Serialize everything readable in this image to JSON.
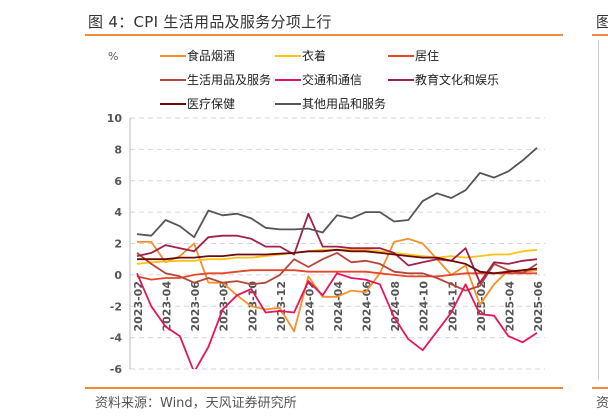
{
  "header": {
    "title": "图 4：CPI 生活用品及服务分项上行",
    "next_panel_title": "图"
  },
  "footer": {
    "source": "资料来源：Wind，天风证券研究所",
    "next_panel_source": "资"
  },
  "chart_data": {
    "type": "line",
    "title": "图 4：CPI 生活用品及服务分项上行",
    "ylabel": "%",
    "xlabel": "",
    "ylim": [
      -6,
      10
    ],
    "yticks": [
      10,
      8,
      6,
      4,
      2,
      0,
      -2,
      -4,
      -6
    ],
    "grid": "horizontal dashed",
    "legend": "top",
    "x": [
      "2023-02",
      "2023-03",
      "2023-04",
      "2023-05",
      "2023-06",
      "2023-07",
      "2023-08",
      "2023-09",
      "2023-10",
      "2023-11",
      "2023-12",
      "2024-01",
      "2024-02",
      "2024-03",
      "2024-04",
      "2024-05",
      "2024-06",
      "2024-07",
      "2024-08",
      "2024-09",
      "2024-10",
      "2024-11",
      "2024-12",
      "2025-01",
      "2025-02",
      "2025-03",
      "2025-04",
      "2025-05",
      "2025-06"
    ],
    "xtick_labels": [
      "2023-02",
      "2023-04",
      "2023-06",
      "2023-08",
      "2023-10",
      "2023-12",
      "2024-02",
      "2024-04",
      "2024-06",
      "2024-08",
      "2024-10",
      "2024-12",
      "2025-02",
      "2025-04",
      "2025-06"
    ],
    "series": [
      {
        "name": "食品烟酒",
        "color": "#F7902A",
        "values": [
          2.1,
          2.1,
          0.8,
          1.2,
          2.0,
          -0.5,
          -0.5,
          -1.3,
          -2.0,
          -2.2,
          -2.1,
          -3.6,
          -0.1,
          -1.4,
          -1.4,
          -1.0,
          -1.1,
          0.1,
          2.1,
          2.3,
          2.0,
          1.0,
          0.0,
          0.6,
          -1.9,
          -0.6,
          0.3,
          0.2,
          0.3
        ]
      },
      {
        "name": "衣着",
        "color": "#FFC21A",
        "values": [
          0.7,
          0.8,
          0.85,
          0.9,
          0.9,
          1.0,
          1.0,
          1.1,
          1.1,
          1.2,
          1.3,
          1.4,
          1.5,
          1.6,
          1.6,
          1.6,
          1.6,
          1.5,
          1.4,
          1.3,
          1.2,
          1.1,
          1.2,
          1.1,
          1.2,
          1.3,
          1.3,
          1.5,
          1.6
        ]
      },
      {
        "name": "居住",
        "color": "#E8452A",
        "values": [
          -0.1,
          -0.3,
          -0.2,
          -0.2,
          0.0,
          0.1,
          0.1,
          0.2,
          0.3,
          0.3,
          0.3,
          0.3,
          0.2,
          0.2,
          0.2,
          0.2,
          0.2,
          0.1,
          0.0,
          -0.1,
          -0.1,
          -0.1,
          0.0,
          0.1,
          0.1,
          0.1,
          0.1,
          0.1,
          0.1
        ]
      },
      {
        "name": "生活用品及服务",
        "color": "#B5473A",
        "values": [
          1.4,
          0.7,
          0.1,
          -0.1,
          -0.5,
          -0.2,
          -0.5,
          -0.4,
          -0.6,
          -0.5,
          0.0,
          1.0,
          0.5,
          1.0,
          1.4,
          0.8,
          0.9,
          0.7,
          0.2,
          0.1,
          0.1,
          -0.2,
          -0.6,
          -1.0,
          -0.7,
          0.7,
          0.3,
          0.1,
          0.7
        ]
      },
      {
        "name": "交通和通信",
        "color": "#E8135C",
        "values": [
          0.1,
          -2.0,
          -3.3,
          -3.9,
          -6.2,
          -4.6,
          -2.2,
          -1.3,
          -0.9,
          -2.4,
          -2.3,
          -2.4,
          -0.4,
          -1.3,
          0.1,
          -0.2,
          -0.3,
          -0.6,
          -2.7,
          -4.1,
          -4.8,
          -3.6,
          -2.4,
          -0.6,
          -2.5,
          -2.6,
          -3.9,
          -4.3,
          -3.7
        ]
      },
      {
        "name": "教育文化和娱乐",
        "color": "#A3204C",
        "values": [
          1.2,
          1.4,
          1.9,
          1.7,
          1.5,
          2.4,
          2.5,
          2.5,
          2.3,
          1.8,
          1.8,
          1.3,
          3.9,
          1.8,
          1.8,
          1.7,
          1.7,
          1.7,
          1.4,
          0.6,
          0.8,
          1.0,
          0.9,
          1.7,
          -0.5,
          0.8,
          0.7,
          0.9,
          1.0
        ]
      },
      {
        "name": "医疗保健",
        "color": "#6B0A0A",
        "values": [
          1.0,
          1.0,
          1.0,
          1.1,
          1.1,
          1.2,
          1.2,
          1.3,
          1.3,
          1.3,
          1.35,
          1.4,
          1.5,
          1.5,
          1.6,
          1.5,
          1.5,
          1.4,
          1.3,
          1.2,
          1.1,
          1.1,
          0.9,
          0.7,
          0.2,
          0.1,
          0.2,
          0.3,
          0.4
        ]
      },
      {
        "name": "其他用品和服务",
        "color": "#555555",
        "values": [
          2.6,
          2.5,
          3.5,
          3.1,
          2.4,
          4.1,
          3.8,
          3.9,
          3.6,
          3.0,
          2.9,
          2.9,
          2.95,
          2.7,
          3.8,
          3.6,
          4.0,
          4.0,
          3.4,
          3.5,
          4.7,
          5.2,
          4.9,
          5.4,
          6.5,
          6.2,
          6.6,
          7.3,
          8.1
        ]
      }
    ]
  }
}
